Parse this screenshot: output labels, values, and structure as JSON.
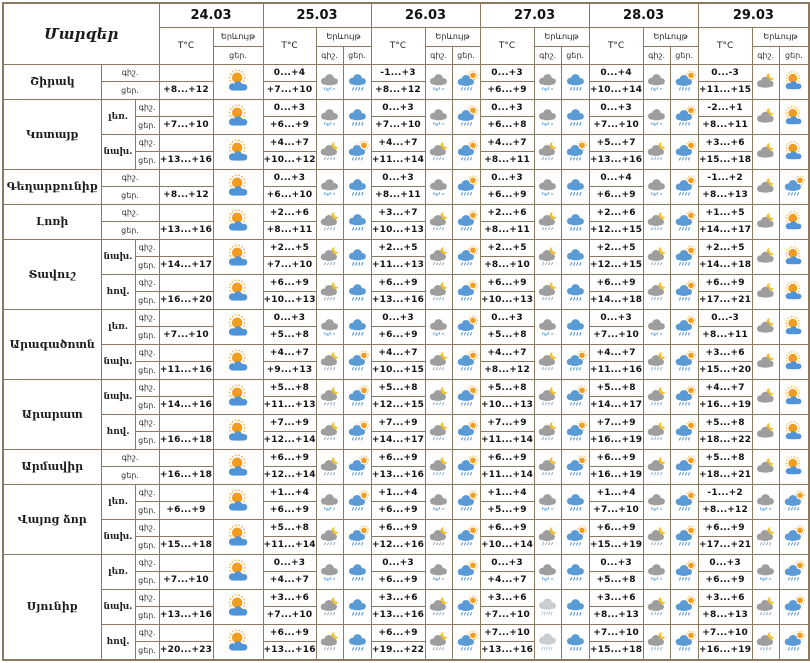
{
  "header": {
    "title": "Մարզեր",
    "temp_label": "T°C",
    "weather_label": "Երևույթ",
    "night_label": "գիշ.",
    "day_label": "ցեր.",
    "dates": [
      "24.03",
      "25.03",
      "26.03",
      "27.03",
      "28.03",
      "29.03"
    ]
  },
  "colors": {
    "border": "#8b7a5f",
    "text": "#111111",
    "cloud_gray": "#9e9e9e",
    "cloud_light": "#c8cdd2",
    "cloud_blue": "#5b9bd5",
    "rain": "#4a90d9",
    "snow": "#8fc3ea",
    "sun": "#f39d1f",
    "sun_rays": "#f6b24a",
    "moon": "#f2c12e"
  },
  "icon_types": {
    "sun-cloud": "sun behind blue cloud (partly cloudy)",
    "rain": "blue cloud with rain",
    "sun-rain": "sun with blue cloud and rain",
    "rain-snow": "gray cloud with rain and snow",
    "moon-rain": "moon with gray cloud and rain",
    "moon-cloud": "moon with gray cloud",
    "drizzle": "light gray cloud with drizzle"
  },
  "cell_format": "n = night temp, d = day temp, ni = night icon, di = day icon; 24.03 has day values only",
  "regions": [
    {
      "name": "Շիրակ",
      "zones": [
        {
          "zone": "",
          "cells": [
            {
              "d": "+8...+12",
              "di": "sun-cloud"
            },
            {
              "n": "0...+4",
              "d": "+7...+10",
              "ni": "rain-snow",
              "di": "rain"
            },
            {
              "n": "-1...+3",
              "d": "+8...+12",
              "ni": "rain-snow",
              "di": "sun-rain"
            },
            {
              "n": "0...+3",
              "d": "+6...+9",
              "ni": "rain-snow",
              "di": "rain"
            },
            {
              "n": "0...+4",
              "d": "+10...+14",
              "ni": "rain-snow",
              "di": "sun-rain"
            },
            {
              "n": "0...-3",
              "d": "+11...+15",
              "ni": "moon-cloud",
              "di": "sun-cloud"
            }
          ]
        }
      ]
    },
    {
      "name": "Կոտայք",
      "zones": [
        {
          "zone": "լեռ.",
          "cells": [
            {
              "d": "+7...+10",
              "di": "sun-cloud"
            },
            {
              "n": "0...+3",
              "d": "+6...+9",
              "ni": "rain-snow",
              "di": "rain"
            },
            {
              "n": "0...+3",
              "d": "+7...+10",
              "ni": "rain-snow",
              "di": "sun-rain"
            },
            {
              "n": "0...+3",
              "d": "+6...+8",
              "ni": "rain-snow",
              "di": "rain"
            },
            {
              "n": "0...+3",
              "d": "+7...+10",
              "ni": "rain-snow",
              "di": "sun-rain"
            },
            {
              "n": "-2...+1",
              "d": "+8...+11",
              "ni": "moon-cloud",
              "di": "sun-cloud"
            }
          ]
        },
        {
          "zone": "նախ.",
          "cells": [
            {
              "d": "+13...+16",
              "di": "sun-cloud"
            },
            {
              "n": "+4...+7",
              "d": "+10...+12",
              "ni": "moon-rain",
              "di": "sun-rain"
            },
            {
              "n": "+4...+7",
              "d": "+11...+14",
              "ni": "moon-rain",
              "di": "sun-rain"
            },
            {
              "n": "+4...+7",
              "d": "+8...+11",
              "ni": "moon-rain",
              "di": "sun-rain"
            },
            {
              "n": "+5...+7",
              "d": "+13...+16",
              "ni": "moon-rain",
              "di": "sun-rain"
            },
            {
              "n": "+3...+6",
              "d": "+15...+18",
              "ni": "moon-cloud",
              "di": "sun-cloud"
            }
          ]
        }
      ]
    },
    {
      "name": "Գեղարքունիք",
      "zones": [
        {
          "zone": "",
          "cells": [
            {
              "d": "+8...+12",
              "di": "sun-cloud"
            },
            {
              "n": "0...+3",
              "d": "+6...+10",
              "ni": "rain-snow",
              "di": "rain"
            },
            {
              "n": "0...+3",
              "d": "+8...+11",
              "ni": "rain-snow",
              "di": "sun-rain"
            },
            {
              "n": "0...+3",
              "d": "+6...+9",
              "ni": "rain-snow",
              "di": "rain"
            },
            {
              "n": "0...+4",
              "d": "+6...+9",
              "ni": "rain-snow",
              "di": "sun-rain"
            },
            {
              "n": "-1...+2",
              "d": "+8...+13",
              "ni": "moon-cloud",
              "di": "sun-rain"
            }
          ]
        }
      ]
    },
    {
      "name": "Լոռի",
      "zones": [
        {
          "zone": "",
          "cells": [
            {
              "d": "+13...+16",
              "di": "sun-cloud"
            },
            {
              "n": "+2...+6",
              "d": "+8...+11",
              "ni": "moon-rain",
              "di": "rain"
            },
            {
              "n": "+3...+7",
              "d": "+10...+13",
              "ni": "moon-rain",
              "di": "sun-rain"
            },
            {
              "n": "+2...+6",
              "d": "+8...+11",
              "ni": "moon-rain",
              "di": "rain"
            },
            {
              "n": "+2...+6",
              "d": "+12...+15",
              "ni": "moon-rain",
              "di": "sun-rain"
            },
            {
              "n": "+1...+5",
              "d": "+14...+17",
              "ni": "moon-cloud",
              "di": "sun-cloud"
            }
          ]
        }
      ]
    },
    {
      "name": "Տավուշ",
      "zones": [
        {
          "zone": "նախ.",
          "cells": [
            {
              "d": "+14...+17",
              "di": "sun-cloud"
            },
            {
              "n": "+2...+5",
              "d": "+7...+10",
              "ni": "moon-rain",
              "di": "rain"
            },
            {
              "n": "+2...+5",
              "d": "+11...+13",
              "ni": "moon-rain",
              "di": "sun-rain"
            },
            {
              "n": "+2...+5",
              "d": "+8...+10",
              "ni": "moon-rain",
              "di": "rain"
            },
            {
              "n": "+2...+5",
              "d": "+12...+15",
              "ni": "moon-rain",
              "di": "sun-rain"
            },
            {
              "n": "+2...+5",
              "d": "+14...+18",
              "ni": "moon-cloud",
              "di": "sun-cloud"
            }
          ]
        },
        {
          "zone": "հով.",
          "cells": [
            {
              "d": "+16...+20",
              "di": "sun-cloud"
            },
            {
              "n": "+6...+9",
              "d": "+10...+13",
              "ni": "moon-rain",
              "di": "rain"
            },
            {
              "n": "+6...+9",
              "d": "+13...+16",
              "ni": "moon-rain",
              "di": "sun-rain"
            },
            {
              "n": "+6...+9",
              "d": "+10...+13",
              "ni": "moon-rain",
              "di": "rain"
            },
            {
              "n": "+6...+9",
              "d": "+14...+18",
              "ni": "moon-rain",
              "di": "sun-rain"
            },
            {
              "n": "+6...+9",
              "d": "+17...+21",
              "ni": "moon-cloud",
              "di": "sun-cloud"
            }
          ]
        }
      ]
    },
    {
      "name": "Արագածոտն",
      "zones": [
        {
          "zone": "լեռ.",
          "cells": [
            {
              "d": "+7...+10",
              "di": "sun-cloud"
            },
            {
              "n": "0...+3",
              "d": "+5...+8",
              "ni": "rain-snow",
              "di": "rain"
            },
            {
              "n": "0...+3",
              "d": "+6...+9",
              "ni": "rain-snow",
              "di": "sun-rain"
            },
            {
              "n": "0...+3",
              "d": "+5...+8",
              "ni": "rain-snow",
              "di": "rain"
            },
            {
              "n": "0...+3",
              "d": "+7...+10",
              "ni": "rain-snow",
              "di": "sun-rain"
            },
            {
              "n": "0...-3",
              "d": "+8...+11",
              "ni": "moon-cloud",
              "di": "sun-cloud"
            }
          ]
        },
        {
          "zone": "նախ.",
          "cells": [
            {
              "d": "+11...+16",
              "di": "sun-cloud"
            },
            {
              "n": "+4...+7",
              "d": "+9...+13",
              "ni": "moon-rain",
              "di": "sun-rain"
            },
            {
              "n": "+4...+7",
              "d": "+10...+15",
              "ni": "moon-rain",
              "di": "sun-rain"
            },
            {
              "n": "+4...+7",
              "d": "+8...+12",
              "ni": "moon-rain",
              "di": "sun-rain"
            },
            {
              "n": "+4...+7",
              "d": "+11...+16",
              "ni": "moon-rain",
              "di": "sun-rain"
            },
            {
              "n": "+3...+6",
              "d": "+15...+20",
              "ni": "moon-cloud",
              "di": "sun-cloud"
            }
          ]
        }
      ]
    },
    {
      "name": "Արարատ",
      "zones": [
        {
          "zone": "նախ.",
          "cells": [
            {
              "d": "+14...+16",
              "di": "sun-cloud"
            },
            {
              "n": "+5...+8",
              "d": "+11...+13",
              "ni": "moon-rain",
              "di": "sun-rain"
            },
            {
              "n": "+5...+8",
              "d": "+12...+15",
              "ni": "moon-rain",
              "di": "sun-rain"
            },
            {
              "n": "+5...+8",
              "d": "+10...+13",
              "ni": "moon-rain",
              "di": "sun-rain"
            },
            {
              "n": "+5...+8",
              "d": "+14...+17",
              "ni": "moon-rain",
              "di": "sun-rain"
            },
            {
              "n": "+4...+7",
              "d": "+16...+19",
              "ni": "moon-cloud",
              "di": "sun-cloud"
            }
          ]
        },
        {
          "zone": "հով.",
          "cells": [
            {
              "d": "+16...+18",
              "di": "sun-cloud"
            },
            {
              "n": "+7...+9",
              "d": "+12...+14",
              "ni": "moon-rain",
              "di": "sun-rain"
            },
            {
              "n": "+7...+9",
              "d": "+14...+17",
              "ni": "moon-rain",
              "di": "sun-rain"
            },
            {
              "n": "+7...+9",
              "d": "+11...+14",
              "ni": "moon-rain",
              "di": "sun-rain"
            },
            {
              "n": "+7...+9",
              "d": "+16...+19",
              "ni": "moon-rain",
              "di": "sun-rain"
            },
            {
              "n": "+5...+8",
              "d": "+18...+22",
              "ni": "moon-cloud",
              "di": "sun-cloud"
            }
          ]
        }
      ]
    },
    {
      "name": "Արմավիր",
      "zones": [
        {
          "zone": "",
          "cells": [
            {
              "d": "+16...+18",
              "di": "sun-cloud"
            },
            {
              "n": "+6...+9",
              "d": "+12...+14",
              "ni": "moon-rain",
              "di": "sun-rain"
            },
            {
              "n": "+6...+9",
              "d": "+13...+16",
              "ni": "moon-rain",
              "di": "sun-rain"
            },
            {
              "n": "+6...+9",
              "d": "+11...+14",
              "ni": "moon-rain",
              "di": "sun-rain"
            },
            {
              "n": "+6...+9",
              "d": "+16...+19",
              "ni": "moon-rain",
              "di": "sun-rain"
            },
            {
              "n": "+5...+8",
              "d": "+18...+21",
              "ni": "moon-cloud",
              "di": "sun-cloud"
            }
          ]
        }
      ]
    },
    {
      "name": "Վայոց ձոր",
      "zones": [
        {
          "zone": "լեռ.",
          "cells": [
            {
              "d": "+6...+9",
              "di": "sun-cloud"
            },
            {
              "n": "+1...+4",
              "d": "+6...+9",
              "ni": "rain-snow",
              "di": "sun-rain"
            },
            {
              "n": "+1...+4",
              "d": "+6...+9",
              "ni": "rain-snow",
              "di": "sun-rain"
            },
            {
              "n": "+1...+4",
              "d": "+5...+9",
              "ni": "rain-snow",
              "di": "rain"
            },
            {
              "n": "+1...+4",
              "d": "+7...+10",
              "ni": "rain-snow",
              "di": "sun-rain"
            },
            {
              "n": "-1...+2",
              "d": "+8...+12",
              "ni": "rain-snow",
              "di": "sun-rain"
            }
          ]
        },
        {
          "zone": "նախ.",
          "cells": [
            {
              "d": "+15...+18",
              "di": "sun-cloud"
            },
            {
              "n": "+5...+8",
              "d": "+11...+14",
              "ni": "moon-rain",
              "di": "sun-rain"
            },
            {
              "n": "+6...+9",
              "d": "+12...+16",
              "ni": "moon-rain",
              "di": "sun-rain"
            },
            {
              "n": "+6...+9",
              "d": "+10...+14",
              "ni": "moon-rain",
              "di": "sun-rain"
            },
            {
              "n": "+6...+9",
              "d": "+15...+19",
              "ni": "moon-rain",
              "di": "sun-rain"
            },
            {
              "n": "+6...+9",
              "d": "+17...+21",
              "ni": "moon-rain",
              "di": "sun-rain"
            }
          ]
        }
      ]
    },
    {
      "name": "Սյունիք",
      "zones": [
        {
          "zone": "լեռ.",
          "cells": [
            {
              "d": "+7...+10",
              "di": "sun-cloud"
            },
            {
              "n": "0...+3",
              "d": "+4...+7",
              "ni": "rain-snow",
              "di": "rain"
            },
            {
              "n": "0...+3",
              "d": "+6...+9",
              "ni": "rain-snow",
              "di": "sun-rain"
            },
            {
              "n": "0...+3",
              "d": "+4...+7",
              "ni": "rain-snow",
              "di": "rain"
            },
            {
              "n": "0...+3",
              "d": "+5...+8",
              "ni": "rain-snow",
              "di": "sun-rain"
            },
            {
              "n": "0...+3",
              "d": "+6...+9",
              "ni": "rain-snow",
              "di": "sun-rain"
            }
          ]
        },
        {
          "zone": "նախ.",
          "cells": [
            {
              "d": "+13...+16",
              "di": "sun-cloud"
            },
            {
              "n": "+3...+6",
              "d": "+7...+10",
              "ni": "moon-rain",
              "di": "rain"
            },
            {
              "n": "+3...+6",
              "d": "+13...+16",
              "ni": "moon-rain",
              "di": "sun-rain"
            },
            {
              "n": "+3...+6",
              "d": "+7...+10",
              "ni": "drizzle",
              "di": "rain"
            },
            {
              "n": "+3...+6",
              "d": "+8...+13",
              "ni": "moon-rain",
              "di": "sun-rain"
            },
            {
              "n": "+3...+6",
              "d": "+8...+13",
              "ni": "moon-rain",
              "di": "sun-rain"
            }
          ]
        },
        {
          "zone": "հով.",
          "cells": [
            {
              "d": "+20...+23",
              "di": "sun-cloud"
            },
            {
              "n": "+6...+9",
              "d": "+13...+16",
              "ni": "moon-rain",
              "di": "rain"
            },
            {
              "n": "+6...+9",
              "d": "+19...+22",
              "ni": "moon-rain",
              "di": "sun-rain"
            },
            {
              "n": "+7...+10",
              "d": "+13...+16",
              "ni": "drizzle",
              "di": "rain"
            },
            {
              "n": "+7...+10",
              "d": "+15...+18",
              "ni": "moon-rain",
              "di": "sun-rain"
            },
            {
              "n": "+7...+10",
              "d": "+16...+19",
              "ni": "moon-rain",
              "di": "sun-rain"
            }
          ]
        }
      ]
    }
  ]
}
